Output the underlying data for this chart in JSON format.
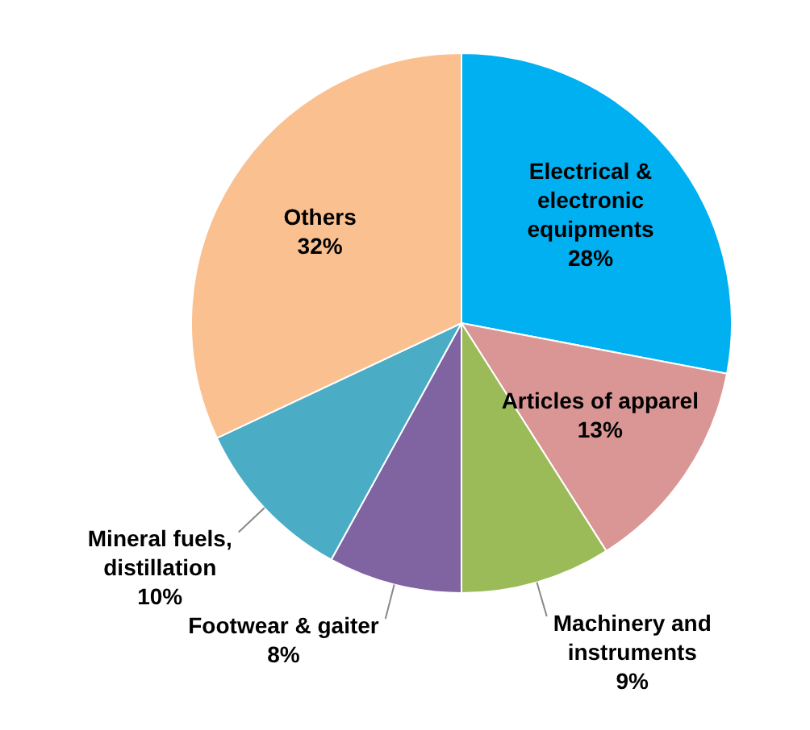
{
  "chart_data": {
    "type": "pie",
    "categories": [
      "Electrical & electronic equipments",
      "Articles of apparel",
      "Machinery and instruments",
      "Footwear & gaiter",
      "Mineral fuels, distillation",
      "Others"
    ],
    "values": [
      28,
      13,
      9,
      8,
      10,
      32
    ],
    "colors": [
      "#00b0f0",
      "#d99694",
      "#9bbb59",
      "#8064a2",
      "#4bacc6",
      "#fac090"
    ],
    "value_labels": [
      "28%",
      "13%",
      "9%",
      "8%",
      "10%",
      "32%"
    ],
    "legend": false
  }
}
